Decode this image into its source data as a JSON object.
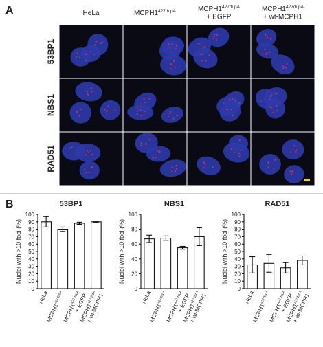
{
  "panel_a": {
    "label": "A",
    "columns": [
      {
        "text": "HeLa"
      },
      {
        "text": "MCPH1",
        "sup": "427dupA"
      },
      {
        "text": "MCPH1",
        "sup": "427dupA",
        "line2": "+ EGFP"
      },
      {
        "text": "MCPH1",
        "sup": "427dupA",
        "line2": "+ wt-MCPH1"
      }
    ],
    "rows": [
      "53BP1",
      "NBS1",
      "RAD51"
    ]
  },
  "panel_b": {
    "label": "B"
  },
  "chart_data": [
    {
      "type": "bar",
      "title": "53BP1",
      "y_label": "Nuclei with >10 foci (%)",
      "categories": [
        {
          "text": "HeLa"
        },
        {
          "text": "MCPH1",
          "sup": "427dupA"
        },
        {
          "text": "MCPH1",
          "sup": "427dupA",
          "line2": "+ EGFP"
        },
        {
          "text": "MCPH1",
          "sup": "427dupA",
          "line2": "+ wt-MCPH1"
        }
      ],
      "values": [
        90,
        80,
        88,
        90
      ],
      "errors": [
        7,
        3,
        1.5,
        1
      ],
      "color": "#ffffff",
      "ylim": [
        0,
        100
      ],
      "yticks": [
        0,
        10,
        20,
        30,
        40,
        50,
        60,
        70,
        80,
        90,
        100
      ]
    },
    {
      "type": "bar",
      "title": "NBS1",
      "y_label": "Nuclei with >10 foci (%)",
      "categories": [
        {
          "text": "HeLa"
        },
        {
          "text": "MCPH1",
          "sup": "427dupA"
        },
        {
          "text": "MCPH1",
          "sup": "427dupA",
          "line2": "+ EGFP"
        },
        {
          "text": "MCPH1",
          "sup": "427dupA",
          "line2": "+ wt-MCPH1"
        }
      ],
      "values": [
        67,
        68,
        55,
        70
      ],
      "errors": [
        5,
        3,
        2,
        12
      ],
      "color": "#ffffff",
      "ylim": [
        0,
        100
      ],
      "yticks": [
        0,
        20,
        40,
        60,
        80,
        100
      ]
    },
    {
      "type": "bar",
      "title": "RAD51",
      "y_label": "Nuclei with >10 foci (%)",
      "categories": [
        {
          "text": "HeLa"
        },
        {
          "text": "MCPH1",
          "sup": "427dupA"
        },
        {
          "text": "MCPH1",
          "sup": "427dupA",
          "line2": "+ EGFP"
        },
        {
          "text": "MCPH1",
          "sup": "427dupA",
          "line2": "+ wt-MCPH1"
        }
      ],
      "values": [
        32,
        34,
        28,
        38
      ],
      "errors": [
        11,
        12,
        7,
        6
      ],
      "color": "#ffffff",
      "ylim": [
        0,
        100
      ],
      "yticks": [
        0,
        10,
        20,
        30,
        40,
        50,
        60,
        70,
        80,
        90,
        100
      ]
    }
  ]
}
